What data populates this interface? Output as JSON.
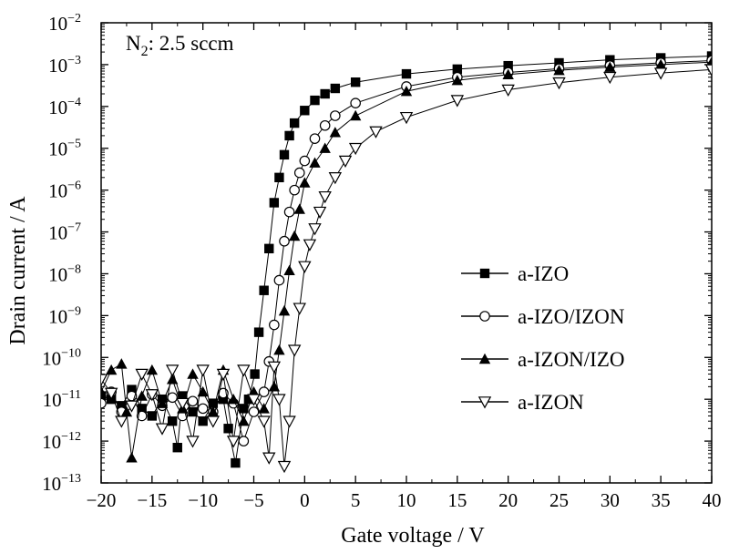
{
  "chart_data": {
    "type": "scatter",
    "xlabel": "Gate voltage / V",
    "ylabel": "Drain current / A",
    "xlim": [
      -20,
      40
    ],
    "ylim_exponent": [
      -13,
      -2
    ],
    "yscale": "log",
    "x_ticks": [
      -20,
      -15,
      -10,
      -5,
      0,
      5,
      10,
      15,
      20,
      25,
      30,
      35,
      40
    ],
    "y_tick_base": "10",
    "y_tick_exponents": [
      "-2",
      "-3",
      "-4",
      "-5",
      "-6",
      "-7",
      "-8",
      "-9",
      "-10",
      "-11",
      "-12",
      "-13"
    ],
    "annotation": {
      "base": "N",
      "subscript": "2",
      "rest": ": 2.5 sccm"
    },
    "legend_position": "center-right",
    "series": [
      {
        "name": "a-IZO",
        "marker": "square-filled",
        "points": [
          [
            -20,
            1.2e-11
          ],
          [
            -19,
            1e-11
          ],
          [
            -18,
            7e-12
          ],
          [
            -17,
            1.7e-11
          ],
          [
            -16,
            6e-12
          ],
          [
            -15,
            4e-12
          ],
          [
            -14,
            1e-11
          ],
          [
            -13,
            3e-12
          ],
          [
            -12.5,
            7e-13
          ],
          [
            -12,
            1.2e-11
          ],
          [
            -11,
            5e-12
          ],
          [
            -10,
            3e-12
          ],
          [
            -9,
            8e-12
          ],
          [
            -8,
            1e-11
          ],
          [
            -7.5,
            2e-12
          ],
          [
            -6.8,
            3e-13
          ],
          [
            -6,
            6e-12
          ],
          [
            -5.5,
            1e-11
          ],
          [
            -4.9,
            4e-11
          ],
          [
            -4.5,
            4e-10
          ],
          [
            -4,
            4e-09
          ],
          [
            -3.5,
            4e-08
          ],
          [
            -3,
            5e-07
          ],
          [
            -2.5,
            2e-06
          ],
          [
            -2,
            7e-06
          ],
          [
            -1.5,
            2e-05
          ],
          [
            -1,
            4e-05
          ],
          [
            0,
            8e-05
          ],
          [
            1,
            0.00014
          ],
          [
            2,
            0.0002
          ],
          [
            3,
            0.00027
          ],
          [
            5,
            0.00038
          ],
          [
            10,
            0.0006
          ],
          [
            15,
            0.00078
          ],
          [
            20,
            0.00094
          ],
          [
            25,
            0.0011
          ],
          [
            30,
            0.0013
          ],
          [
            35,
            0.00145
          ],
          [
            40,
            0.0016
          ]
        ]
      },
      {
        "name": "a-IZO/IZON",
        "marker": "circle-open",
        "points": [
          [
            -20,
            8e-12
          ],
          [
            -19,
            1.5e-11
          ],
          [
            -18,
            5e-12
          ],
          [
            -17,
            1.2e-11
          ],
          [
            -16,
            4e-12
          ],
          [
            -15,
            1.3e-11
          ],
          [
            -14,
            7e-12
          ],
          [
            -13,
            1.1e-11
          ],
          [
            -12,
            4e-12
          ],
          [
            -11,
            9e-12
          ],
          [
            -10,
            6e-12
          ],
          [
            -9,
            5e-12
          ],
          [
            -8,
            1.4e-11
          ],
          [
            -7,
            8e-12
          ],
          [
            -6,
            1e-12
          ],
          [
            -5,
            5e-12
          ],
          [
            -4,
            1.5e-11
          ],
          [
            -3.5,
            8e-11
          ],
          [
            -3,
            6e-10
          ],
          [
            -2.5,
            7e-09
          ],
          [
            -2,
            6e-08
          ],
          [
            -1.5,
            3e-07
          ],
          [
            -1,
            1e-06
          ],
          [
            -0.5,
            2.6e-06
          ],
          [
            0,
            5e-06
          ],
          [
            1,
            1.7e-05
          ],
          [
            2,
            3.5e-05
          ],
          [
            3,
            6e-05
          ],
          [
            5,
            0.00012
          ],
          [
            10,
            0.0003
          ],
          [
            15,
            0.0005
          ],
          [
            20,
            0.00065
          ],
          [
            25,
            0.0008
          ],
          [
            30,
            0.00095
          ],
          [
            35,
            0.0011
          ],
          [
            40,
            0.00125
          ]
        ]
      },
      {
        "name": "a-IZON/IZO",
        "marker": "triangle-up-filled",
        "points": [
          [
            -20,
            1.5e-11
          ],
          [
            -19,
            5e-11
          ],
          [
            -18,
            7e-11
          ],
          [
            -17.5,
            5e-12
          ],
          [
            -17,
            4e-13
          ],
          [
            -16,
            1.2e-11
          ],
          [
            -15,
            5e-11
          ],
          [
            -14,
            8e-12
          ],
          [
            -13,
            3e-11
          ],
          [
            -12,
            6e-12
          ],
          [
            -11,
            4e-11
          ],
          [
            -10,
            1.5e-11
          ],
          [
            -9,
            5e-12
          ],
          [
            -8,
            5e-11
          ],
          [
            -7,
            1e-11
          ],
          [
            -6,
            3e-12
          ],
          [
            -5,
            1.5e-11
          ],
          [
            -4,
            6e-12
          ],
          [
            -3,
            2e-11
          ],
          [
            -2.5,
            1.5e-10
          ],
          [
            -2,
            1.3e-09
          ],
          [
            -1.5,
            1.2e-08
          ],
          [
            -1,
            8e-08
          ],
          [
            -0.5,
            3.5e-07
          ],
          [
            0,
            1.5e-06
          ],
          [
            1,
            4.5e-06
          ],
          [
            2,
            1e-05
          ],
          [
            3,
            2.4e-05
          ],
          [
            5,
            6e-05
          ],
          [
            10,
            0.00023
          ],
          [
            15,
            0.00042
          ],
          [
            20,
            0.00058
          ],
          [
            25,
            0.00073
          ],
          [
            30,
            0.00087
          ],
          [
            35,
            0.001
          ],
          [
            40,
            0.00115
          ]
        ]
      },
      {
        "name": "a-IZON",
        "marker": "triangle-down-open",
        "points": [
          [
            -20,
            3e-11
          ],
          [
            -19,
            1.4e-11
          ],
          [
            -18,
            3e-12
          ],
          [
            -17,
            7e-12
          ],
          [
            -16,
            4e-11
          ],
          [
            -15,
            1.3e-11
          ],
          [
            -14,
            2e-12
          ],
          [
            -13,
            5e-11
          ],
          [
            -12,
            8e-12
          ],
          [
            -11,
            1e-12
          ],
          [
            -10,
            5e-11
          ],
          [
            -9,
            3e-12
          ],
          [
            -8,
            4e-11
          ],
          [
            -7,
            1e-12
          ],
          [
            -6,
            5e-11
          ],
          [
            -5,
            1e-11
          ],
          [
            -4,
            3e-12
          ],
          [
            -3.5,
            4e-13
          ],
          [
            -3,
            6e-11
          ],
          [
            -2.5,
            1e-11
          ],
          [
            -2,
            2.5e-13
          ],
          [
            -1.5,
            3e-12
          ],
          [
            -1,
            1.5e-10
          ],
          [
            -0.5,
            1.5e-09
          ],
          [
            0,
            1.5e-08
          ],
          [
            0.5,
            5e-08
          ],
          [
            1,
            1.2e-07
          ],
          [
            1.5,
            3e-07
          ],
          [
            2,
            7e-07
          ],
          [
            3,
            2e-06
          ],
          [
            4,
            5e-06
          ],
          [
            5,
            1e-05
          ],
          [
            7,
            2.5e-05
          ],
          [
            10,
            5.5e-05
          ],
          [
            15,
            0.00014
          ],
          [
            20,
            0.00025
          ],
          [
            25,
            0.00037
          ],
          [
            30,
            0.0005
          ],
          [
            35,
            0.00063
          ],
          [
            40,
            0.00076
          ]
        ]
      }
    ]
  }
}
